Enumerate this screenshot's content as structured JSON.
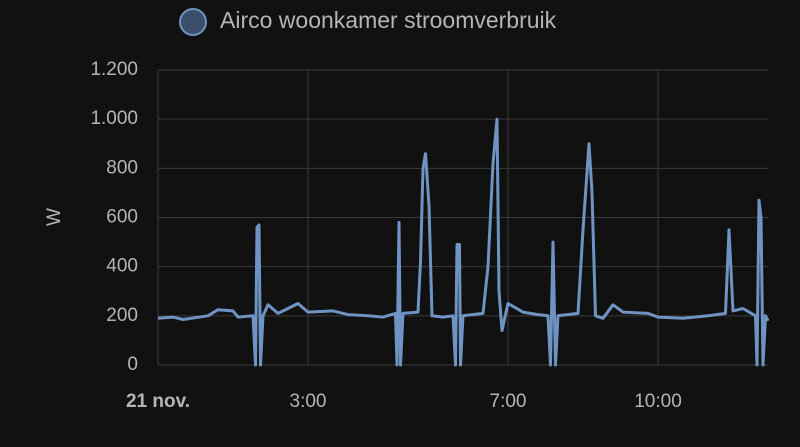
{
  "chart_data": {
    "type": "line",
    "legend_position": "top",
    "ylabel": "W",
    "x": [
      0,
      0.3,
      0.5,
      1,
      1.2,
      1.5,
      1.6,
      1.9,
      1.95,
      1.98,
      2.02,
      2.05,
      2.1,
      2.2,
      2.4,
      2.8,
      3,
      3.5,
      3.8,
      4.2,
      4.5,
      4.75,
      4.78,
      4.82,
      4.85,
      4.9,
      5.2,
      5.25,
      5.3,
      5.35,
      5.42,
      5.48,
      5.7,
      5.9,
      5.95,
      5.98,
      6.03,
      6.05,
      6.1,
      6.5,
      6.6,
      6.7,
      6.78,
      6.82,
      6.88,
      7,
      7.3,
      7.6,
      7.8,
      7.85,
      7.9,
      7.95,
      8,
      8.4,
      8.5,
      8.62,
      8.68,
      8.75,
      8.9,
      9.1,
      9.3,
      9.8,
      10,
      10.5,
      11,
      11.35,
      11.42,
      11.5,
      11.7,
      11.95,
      11.98,
      12.02,
      12.06,
      12.1,
      12.15,
      12.2
    ],
    "series": [
      {
        "name": "Airco woonkamer stroomverbruik",
        "color": "#6f93c2",
        "values": [
          190,
          195,
          185,
          200,
          225,
          220,
          195,
          200,
          0,
          560,
          570,
          0,
          200,
          245,
          210,
          250,
          215,
          220,
          205,
          200,
          195,
          210,
          0,
          580,
          0,
          210,
          215,
          420,
          800,
          860,
          650,
          200,
          195,
          200,
          0,
          490,
          490,
          0,
          200,
          210,
          400,
          820,
          1000,
          300,
          140,
          250,
          215,
          205,
          200,
          0,
          500,
          0,
          200,
          210,
          550,
          900,
          700,
          200,
          190,
          245,
          215,
          210,
          195,
          190,
          200,
          210,
          550,
          220,
          230,
          200,
          0,
          670,
          600,
          0,
          200,
          180
        ]
      }
    ],
    "xlim": [
      0,
      12.2
    ],
    "xticks": [
      {
        "value": 0,
        "label": "21 nov."
      },
      {
        "value": 3,
        "label": "3:00"
      },
      {
        "value": 7,
        "label": "7:00"
      },
      {
        "value": 10,
        "label": "10:00"
      }
    ],
    "ylim": [
      0,
      1200
    ],
    "yticks": [
      0,
      200,
      400,
      600,
      800,
      {
        "value": 1000,
        "label": "1.000"
      },
      {
        "value": 1200,
        "label": "1.200"
      }
    ],
    "grid": true
  }
}
